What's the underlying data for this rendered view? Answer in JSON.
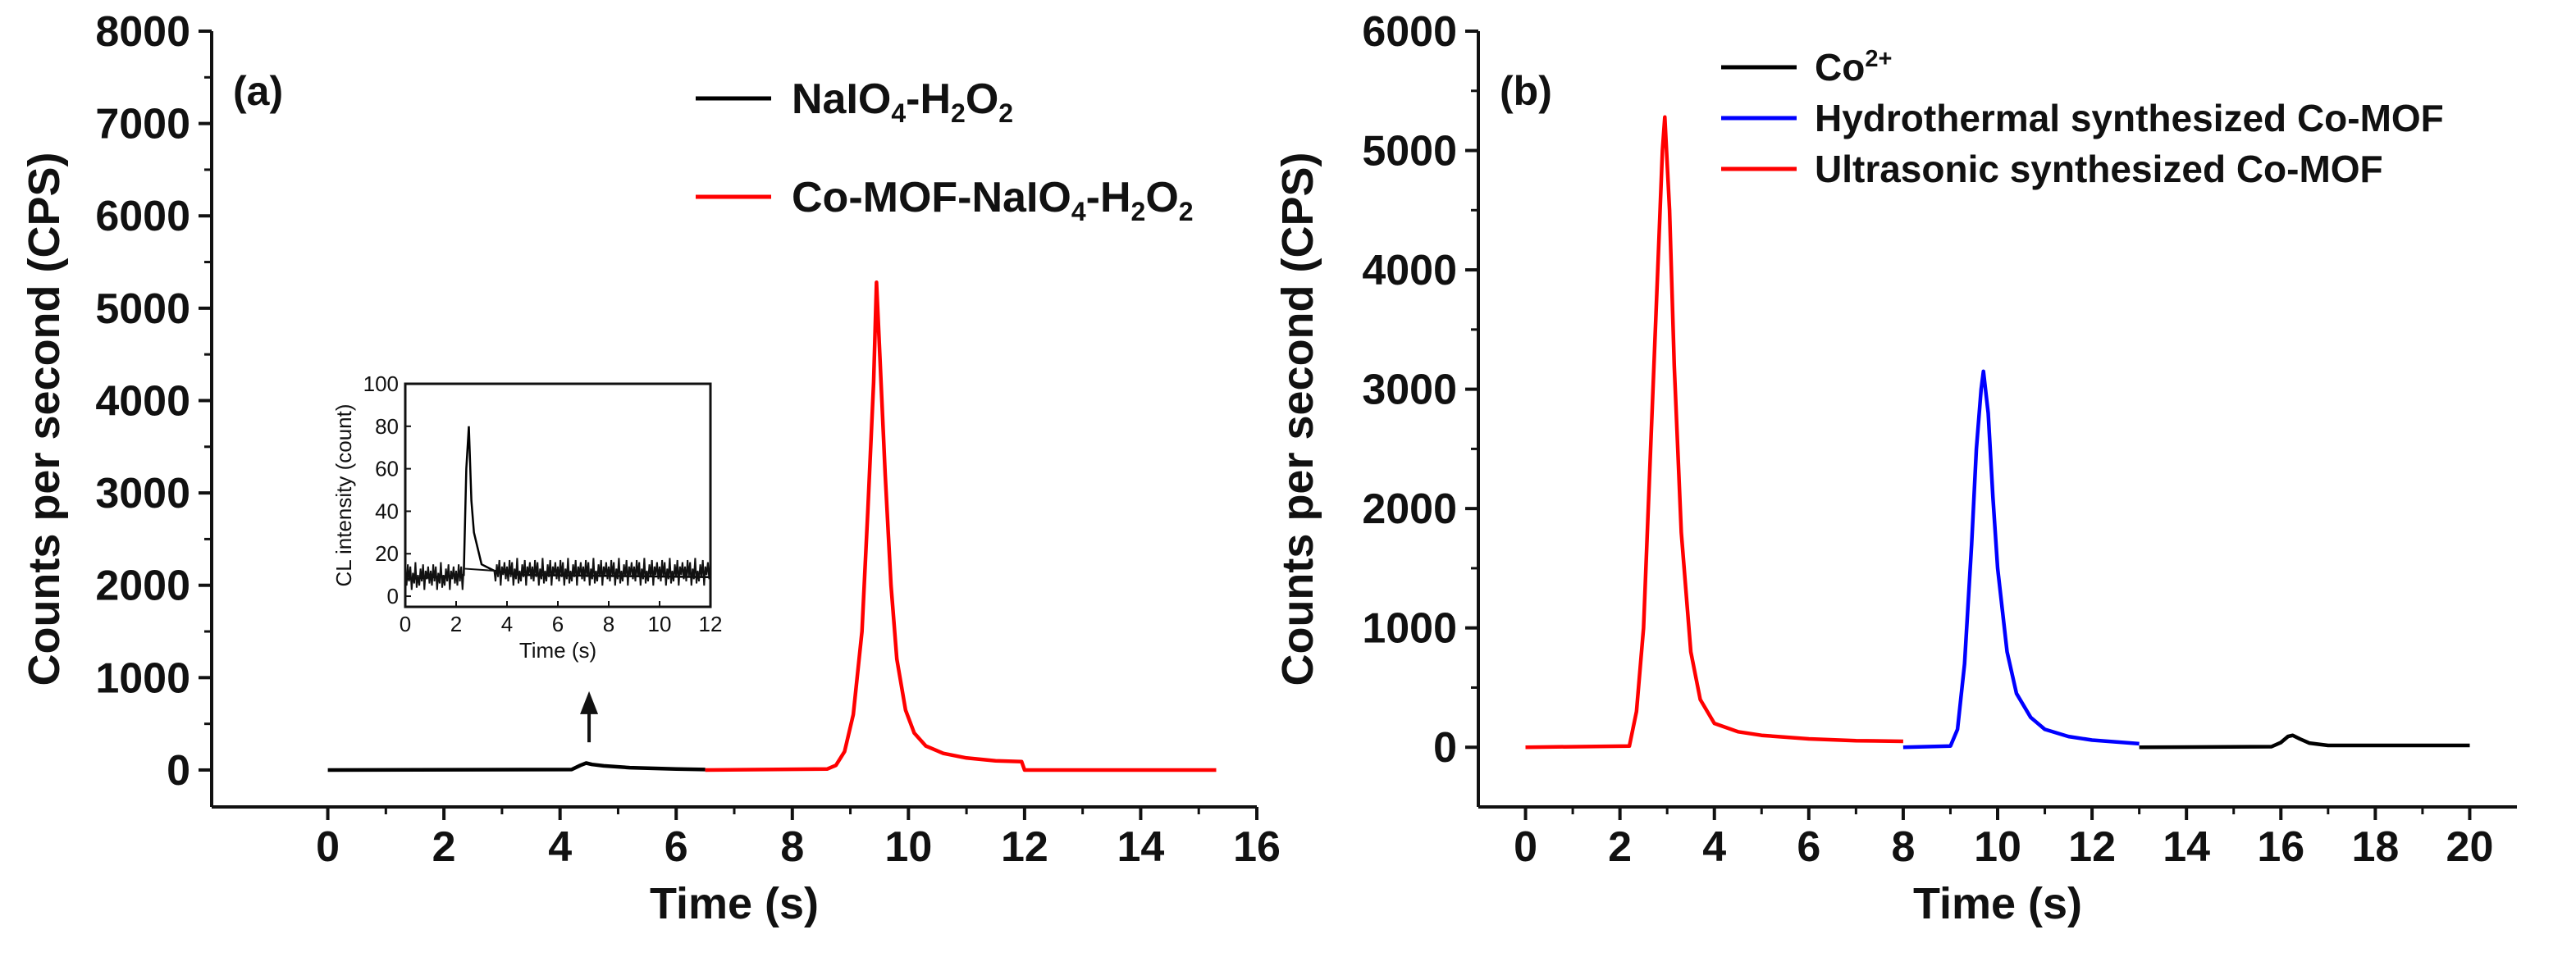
{
  "chart_data": [
    {
      "type": "line",
      "panel_label": "(a)",
      "xlabel": "Time (s)",
      "ylabel": "Counts per second (CPS)",
      "xlim": [
        -2,
        16
      ],
      "ylim": [
        -400,
        8000
      ],
      "x_ticks": [
        "0",
        "2",
        "4",
        "6",
        "8",
        "10",
        "12",
        "14",
        "16"
      ],
      "y_ticks": [
        "0",
        "1000",
        "2000",
        "3000",
        "4000",
        "5000",
        "6000",
        "7000",
        "8000"
      ],
      "legend_position": "top-right",
      "series": [
        {
          "name": "NaIO4-H2O2",
          "color": "#000000",
          "legend": {
            "base1": "NaIO",
            "sub1": "4",
            "base2": "-H",
            "sub2": "2",
            "base3": "O",
            "sub3": "2"
          },
          "x": [
            0,
            4.2,
            4.35,
            4.45,
            4.55,
            4.75,
            5.2,
            6.0,
            6.5
          ],
          "y": [
            0,
            5,
            50,
            75,
            60,
            45,
            25,
            10,
            5
          ]
        },
        {
          "name": "Co-MOF-NaIO4-H2O2",
          "color": "#ff0000",
          "legend": {
            "base1": "Co-MOF-NaIO",
            "sub1": "4",
            "base2": "-H",
            "sub2": "2",
            "base3": "O",
            "sub3": "2"
          },
          "x": [
            6.5,
            8.6,
            8.75,
            8.9,
            9.05,
            9.2,
            9.3,
            9.4,
            9.45,
            9.5,
            9.6,
            9.7,
            9.8,
            9.95,
            10.1,
            10.3,
            10.6,
            11.0,
            11.5,
            11.95,
            12.0,
            15.3
          ],
          "y": [
            0,
            10,
            50,
            200,
            600,
            1500,
            2800,
            4200,
            5280,
            4600,
            3200,
            2000,
            1200,
            650,
            400,
            260,
            180,
            130,
            100,
            90,
            0,
            0
          ]
        }
      ],
      "inset": {
        "type": "line",
        "xlabel": "Time (s)",
        "ylabel": "CL intensity (count)",
        "xlim": [
          0,
          12
        ],
        "ylim": [
          -5,
          100
        ],
        "x_ticks": [
          "0",
          "2",
          "4",
          "6",
          "8",
          "10",
          "12"
        ],
        "y_ticks": [
          "0",
          "20",
          "40",
          "60",
          "80",
          "100"
        ],
        "series": [
          {
            "name": "NaIO4-H2O2",
            "color": "#000000",
            "x": [
              0,
              2.3,
              2.4,
              2.5,
              2.6,
              2.7,
              2.8,
              3.0,
              3.5,
              4.5,
              12
            ],
            "y": [
              8,
              10,
              60,
              80,
              45,
              30,
              25,
              15,
              12,
              10,
              9
            ]
          }
        ]
      },
      "annotation": {
        "type": "arrow",
        "x": 4.5,
        "y_from": 300,
        "y_to": 800
      }
    },
    {
      "type": "line",
      "panel_label": "(b)",
      "xlabel": "Time (s)",
      "ylabel": "Counts per second (CPS)",
      "xlim": [
        -1,
        21
      ],
      "ylim": [
        -500,
        6000
      ],
      "x_ticks": [
        "0",
        "2",
        "4",
        "6",
        "8",
        "10",
        "12",
        "14",
        "16",
        "18",
        "20"
      ],
      "y_ticks": [
        "0",
        "1000",
        "2000",
        "3000",
        "4000",
        "5000",
        "6000"
      ],
      "legend_position": "top-left",
      "series": [
        {
          "name": "Co2+",
          "color": "#000000",
          "legend": {
            "base1": "Co",
            "sup1": "2+"
          },
          "x": [
            13,
            15.8,
            16.0,
            16.15,
            16.25,
            16.4,
            16.6,
            17.0,
            20
          ],
          "y": [
            0,
            5,
            40,
            90,
            100,
            70,
            35,
            15,
            15
          ]
        },
        {
          "name": "Hydrothermal synthesized Co-MOF",
          "color": "#0000ff",
          "legend": {
            "base1": "Hydrothermal synthesized Co-MOF"
          },
          "x": [
            8.0,
            9.0,
            9.15,
            9.3,
            9.45,
            9.55,
            9.65,
            9.7,
            9.8,
            9.9,
            10.0,
            10.2,
            10.4,
            10.7,
            11.0,
            11.5,
            12.0,
            13.0
          ],
          "y": [
            0,
            10,
            150,
            700,
            1700,
            2500,
            3000,
            3150,
            2800,
            2100,
            1500,
            800,
            450,
            250,
            150,
            90,
            60,
            30
          ]
        },
        {
          "name": "Ultrasonic synthesized Co-MOF",
          "color": "#ff0000",
          "legend": {
            "base1": "Ultrasonic synthesized Co-MOF"
          },
          "x": [
            0,
            2.2,
            2.35,
            2.5,
            2.65,
            2.8,
            2.9,
            2.95,
            3.05,
            3.15,
            3.3,
            3.5,
            3.7,
            4.0,
            4.5,
            5.0,
            6.0,
            7.0,
            8.0
          ],
          "y": [
            0,
            10,
            300,
            1000,
            2500,
            4000,
            5000,
            5280,
            4500,
            3200,
            1800,
            800,
            400,
            200,
            130,
            100,
            70,
            55,
            50
          ]
        }
      ]
    }
  ]
}
